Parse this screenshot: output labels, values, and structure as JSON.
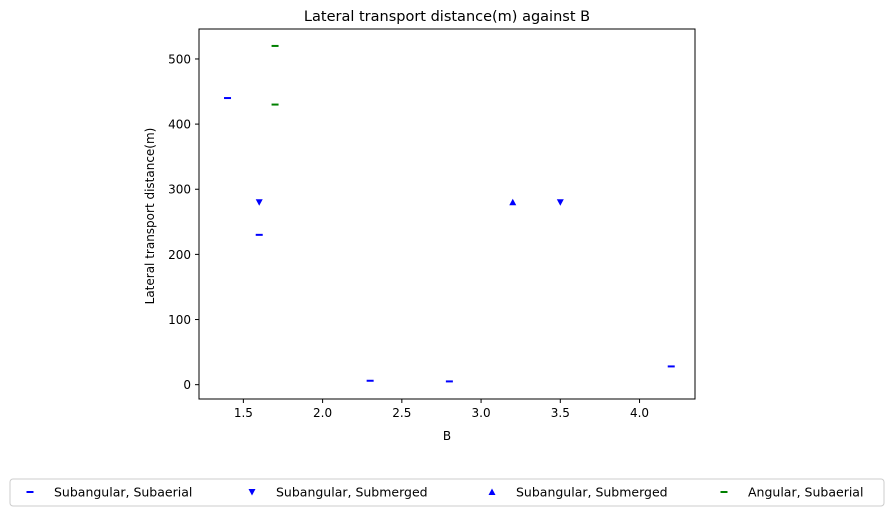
{
  "chart_data": {
    "type": "scatter",
    "title": "Lateral transport distance(m) against B",
    "xlabel": "B",
    "ylabel": "Lateral transport distance(m)",
    "xlim": [
      1.22,
      4.35
    ],
    "ylim": [
      -22,
      546
    ],
    "xticks": [
      1.5,
      2.0,
      2.5,
      3.0,
      3.5,
      4.0
    ],
    "xtick_labels": [
      "1.5",
      "2.0",
      "2.5",
      "3.0",
      "3.5",
      "4.0"
    ],
    "yticks": [
      0,
      100,
      200,
      300,
      400,
      500
    ],
    "ytick_labels": [
      "0",
      "100",
      "200",
      "300",
      "400",
      "500"
    ],
    "grid": false,
    "legend_position": "below",
    "series": [
      {
        "name": "Subangular, Subaerial",
        "marker": "hline",
        "color": "#0000ff",
        "points": [
          [
            1.4,
            440
          ],
          [
            1.6,
            230
          ],
          [
            2.3,
            6
          ],
          [
            2.8,
            5
          ],
          [
            4.2,
            28
          ]
        ]
      },
      {
        "name": "Subangular, Submerged",
        "marker": "triangle-down",
        "color": "#0000ff",
        "points": [
          [
            1.6,
            280
          ],
          [
            3.5,
            280
          ]
        ]
      },
      {
        "name": "Subangular, Submerged",
        "marker": "triangle-up",
        "color": "#0000ff",
        "points": [
          [
            3.2,
            280
          ]
        ]
      },
      {
        "name": "Angular, Subaerial",
        "marker": "hline",
        "color": "#008000",
        "points": [
          [
            1.7,
            520
          ],
          [
            1.7,
            430
          ]
        ]
      }
    ]
  }
}
